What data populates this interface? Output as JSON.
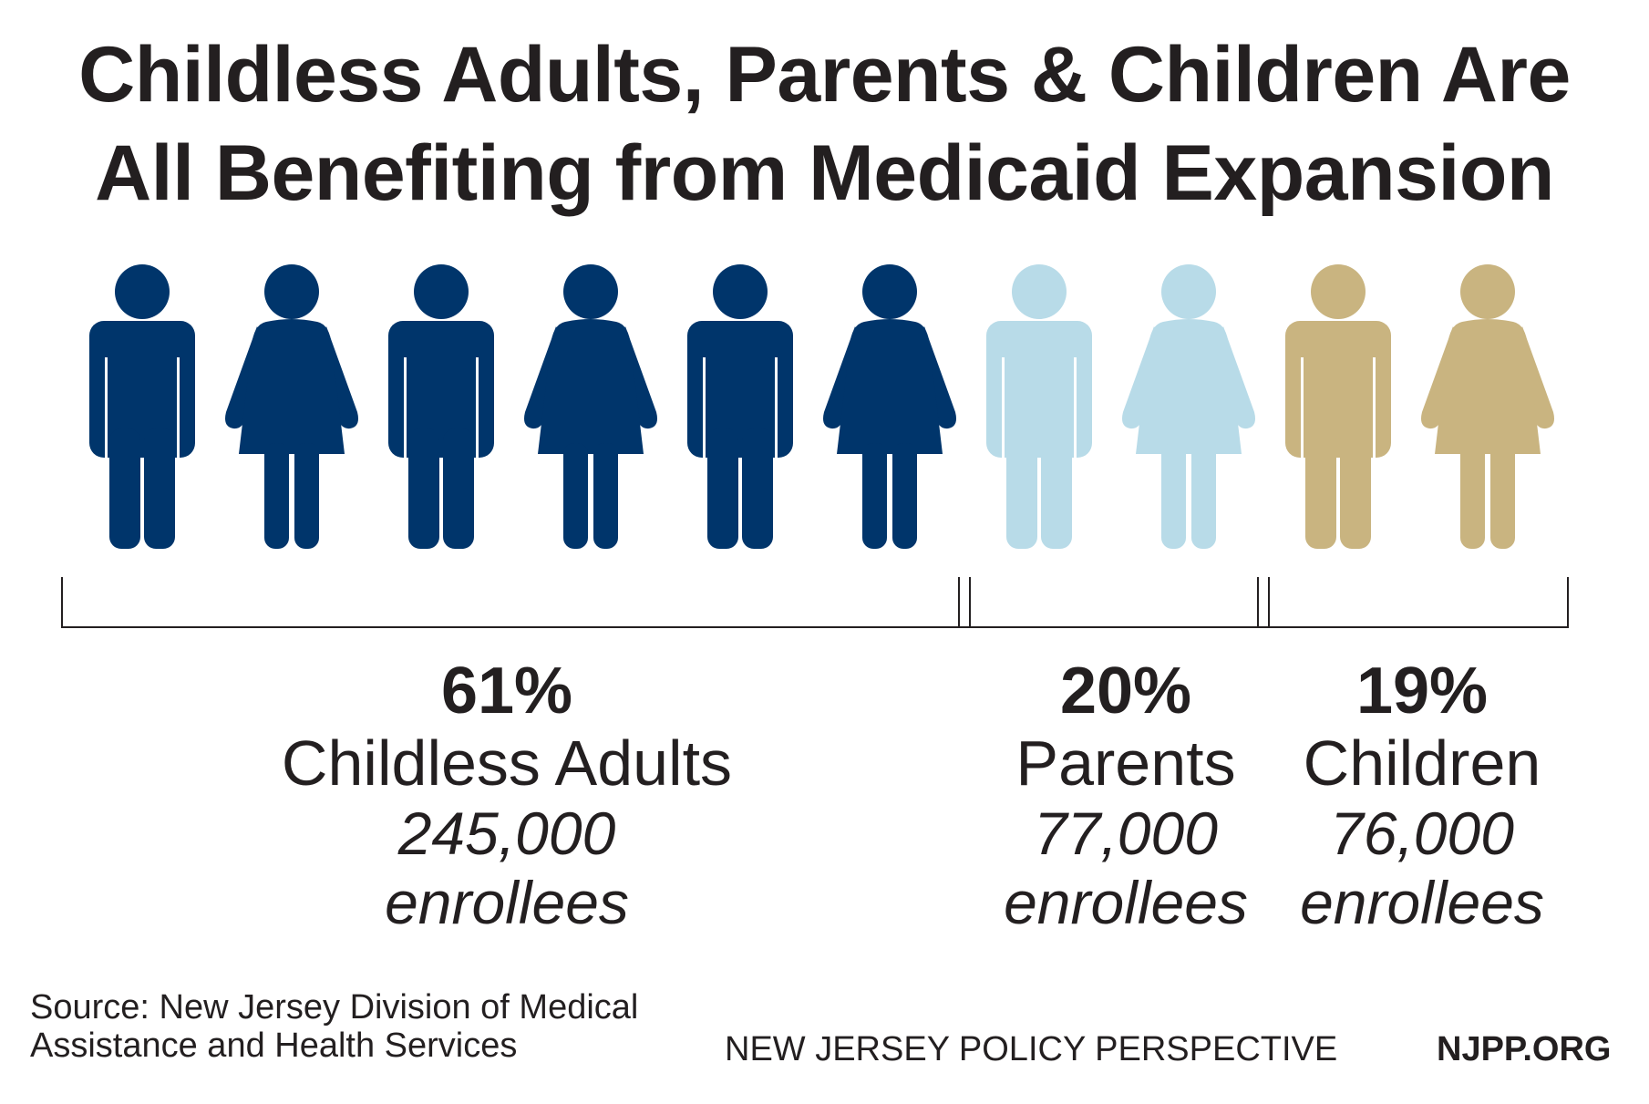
{
  "title": {
    "line1": "Childless Adults, Parents & Children Are",
    "line2": "All Benefiting from Medicaid Expansion"
  },
  "chart_data": {
    "type": "pictogram",
    "title": "Childless Adults, Parents & Children Are All Benefiting from Medicaid Expansion",
    "categories": [
      "Childless Adults",
      "Parents",
      "Children"
    ],
    "percent_labels": [
      "61%",
      "20%",
      "19%"
    ],
    "percent_values": [
      61,
      20,
      19
    ],
    "count_labels": [
      "245,000",
      "77,000",
      "76,000"
    ],
    "count_values": [
      245000,
      77000,
      76000
    ],
    "unit": "enrollees",
    "icons_per_category": [
      6,
      2,
      2
    ],
    "colors": [
      "#00356b",
      "#b8dbe8",
      "#c9b480"
    ]
  },
  "groups": [
    {
      "pct": "61%",
      "category": "Childless Adults",
      "count": "245,000",
      "unit": "enrollees"
    },
    {
      "pct": "20%",
      "category": "Parents",
      "count": "77,000",
      "unit": "enrollees"
    },
    {
      "pct": "19%",
      "category": "Children",
      "count": "76,000",
      "unit": "enrollees"
    }
  ],
  "source": {
    "line1": "Source: New Jersey Division of Medical",
    "line2": "Assistance and Health Services"
  },
  "footer": {
    "organization": "NEW JERSEY POLICY PERSPECTIVE",
    "website": "NJPP.ORG"
  },
  "colors": {
    "text": "#231f20",
    "childless_adults": "#00356b",
    "parents": "#b8dbe8",
    "children": "#c9b480",
    "bracket": "#231f20",
    "background": "#ffffff"
  }
}
